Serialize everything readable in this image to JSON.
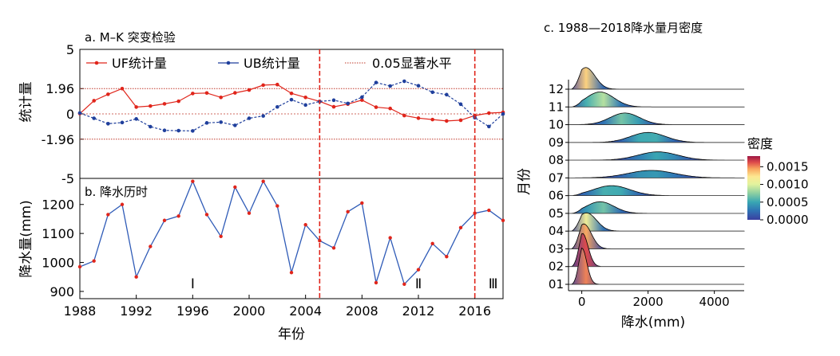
{
  "panel_a": {
    "title": "a. M–K 突变检验",
    "ylabel": "统计量",
    "legend": [
      {
        "label": "UF统计量",
        "color": "#e0251b",
        "marker": "circle"
      },
      {
        "label": "UB统计量",
        "color": "#1f3f9c",
        "marker": "circle"
      },
      {
        "label": "0.05显著水平",
        "color": "#c0392b",
        "style": "dotted"
      }
    ],
    "y_tick_labels": [
      "5",
      "1.96",
      "0",
      "-1.96",
      "-5"
    ],
    "y_ticks": [
      5,
      1.96,
      0,
      -1.96,
      -5
    ]
  },
  "panel_b": {
    "title": "b. 降水历时",
    "ylabel": "降水量(mm)",
    "xlabel": "年份",
    "y_tick_labels": [
      "1200",
      "1100",
      "1000",
      "900"
    ],
    "y_ticks": [
      1200,
      1100,
      1000,
      900
    ],
    "x_tick_labels": [
      "1988",
      "1992",
      "1996",
      "2000",
      "2004",
      "2008",
      "2012",
      "2016"
    ],
    "x_ticks": [
      1988,
      1992,
      1996,
      2000,
      2004,
      2008,
      2012,
      2016
    ],
    "period_labels": [
      {
        "text": "Ⅰ",
        "year": 1996
      },
      {
        "text": "Ⅱ",
        "year": 2012
      },
      {
        "text": "Ⅲ",
        "year": 2017.3
      }
    ]
  },
  "panel_c": {
    "title": "c. 1988—2018降水量月密度",
    "ylabel": "月份",
    "xlabel": "降水(mm)",
    "x_tick_labels": [
      "0",
      "2000",
      "4000"
    ],
    "x_ticks": [
      0,
      2000,
      4000
    ],
    "colorbar_title": "密度",
    "colorbar_tick_labels": [
      "0.0015",
      "0.0010",
      "0.0005",
      "0.0000"
    ],
    "colorbar_ticks": [
      0.0015,
      0.001,
      0.0005,
      0.0
    ]
  },
  "colors": {
    "uf": "#e0251b",
    "ub": "#1f3f9c",
    "precip_line": "#2f5bb7",
    "precip_marker": "#e0251b",
    "change_line": "#e0251b",
    "significance": "#c0392b"
  },
  "chart_data": [
    {
      "type": "line",
      "title": "a. M–K 突变检验",
      "ylabel": "统计量",
      "x": [
        1988,
        1989,
        1990,
        1991,
        1992,
        1993,
        1994,
        1995,
        1996,
        1997,
        1998,
        1999,
        2000,
        2001,
        2002,
        2003,
        2004,
        2005,
        2006,
        2007,
        2008,
        2009,
        2010,
        2011,
        2012,
        2013,
        2014,
        2015,
        2016,
        2017,
        2018
      ],
      "xlim": [
        1988,
        2018
      ],
      "ylim": [
        -5,
        5
      ],
      "series": [
        {
          "name": "UF统计量",
          "values": [
            0.02,
            1.02,
            1.52,
            1.96,
            0.53,
            0.61,
            0.78,
            0.98,
            1.58,
            1.62,
            1.28,
            1.63,
            1.85,
            2.23,
            2.27,
            1.59,
            1.28,
            0.97,
            0.55,
            0.76,
            1.07,
            0.52,
            0.42,
            -0.13,
            -0.33,
            -0.44,
            -0.55,
            -0.49,
            -0.13,
            0.06,
            0.12
          ]
        },
        {
          "name": "UB统计量",
          "values": [
            0.07,
            -0.34,
            -0.76,
            -0.67,
            -0.39,
            -0.99,
            -1.28,
            -1.3,
            -1.32,
            -0.7,
            -0.64,
            -0.89,
            -0.34,
            -0.16,
            0.54,
            1.1,
            0.69,
            0.96,
            1.06,
            0.81,
            1.3,
            2.43,
            2.16,
            2.53,
            2.18,
            1.68,
            1.49,
            0.75,
            -0.29,
            -0.98,
            0.0
          ]
        }
      ],
      "significance_levels": [
        1.96,
        -1.96
      ],
      "change_points": [
        2005,
        2016
      ]
    },
    {
      "type": "line",
      "title": "b. 降水历时",
      "xlabel": "年份",
      "ylabel": "降水量(mm)",
      "x": [
        1988,
        1989,
        1990,
        1991,
        1992,
        1993,
        1994,
        1995,
        1996,
        1997,
        1998,
        1999,
        2000,
        2001,
        2002,
        2003,
        2004,
        2005,
        2006,
        2007,
        2008,
        2009,
        2010,
        2011,
        2012,
        2013,
        2014,
        2015,
        2016,
        2017,
        2018
      ],
      "xlim": [
        1988,
        2018
      ],
      "ylim": [
        875,
        1290
      ],
      "series": [
        {
          "name": "",
          "values": [
            985,
            1005,
            1165,
            1200,
            950,
            1055,
            1145,
            1160,
            1280,
            1165,
            1090,
            1260,
            1170,
            1280,
            1195,
            965,
            1130,
            1075,
            1050,
            1175,
            1205,
            930,
            1085,
            925,
            975,
            1065,
            1020,
            1120,
            1170,
            1180,
            1145
          ]
        }
      ],
      "change_points": [
        2005,
        2016
      ]
    },
    {
      "type": "area",
      "title": "c. 1988—2018降水量月密度",
      "xlabel": "降水(mm)",
      "ylabel": "月份",
      "xlim": [
        -400,
        4900
      ],
      "categories": [
        "01",
        "02",
        "03",
        "04",
        "05",
        "06",
        "07",
        "08",
        "09",
        "10",
        "11",
        "12"
      ],
      "distributions": [
        {
          "month": "01",
          "peak_mm": 0,
          "spread_mm": 150,
          "peak_density": 0.0022
        },
        {
          "month": "02",
          "peak_mm": 20,
          "spread_mm": 170,
          "peak_density": 0.002
        },
        {
          "month": "03",
          "peak_mm": 60,
          "spread_mm": 230,
          "peak_density": 0.0015
        },
        {
          "month": "04",
          "peak_mm": 140,
          "spread_mm": 300,
          "peak_density": 0.0011
        },
        {
          "month": "05",
          "peak_mm": 550,
          "spread_mm": 420,
          "peak_density": 0.0007
        },
        {
          "month": "06",
          "peak_mm": 900,
          "spread_mm": 550,
          "peak_density": 0.0006
        },
        {
          "month": "07",
          "peak_mm": 2100,
          "spread_mm": 700,
          "peak_density": 0.00045
        },
        {
          "month": "08",
          "peak_mm": 2300,
          "spread_mm": 600,
          "peak_density": 0.0005
        },
        {
          "month": "09",
          "peak_mm": 2000,
          "spread_mm": 520,
          "peak_density": 0.0006
        },
        {
          "month": "10",
          "peak_mm": 1300,
          "spread_mm": 450,
          "peak_density": 0.0007
        },
        {
          "month": "11",
          "peak_mm": 550,
          "spread_mm": 420,
          "peak_density": 0.0009
        },
        {
          "month": "12",
          "peak_mm": 120,
          "spread_mm": 280,
          "peak_density": 0.0013
        }
      ],
      "colorbar": {
        "label": "密度",
        "range": [
          0.0,
          0.0018
        ]
      }
    }
  ]
}
